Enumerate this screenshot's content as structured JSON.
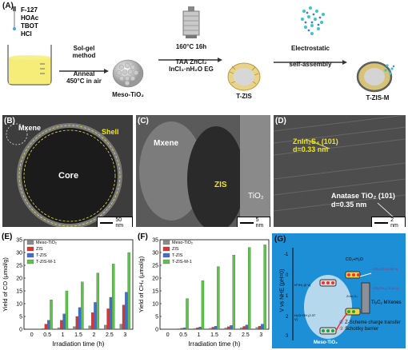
{
  "panelA": {
    "label": "(A)",
    "reagents": [
      "F-127",
      "HOAc",
      "TBOT",
      "HCl"
    ],
    "step1_line1": "Sol-gel",
    "step1_line2": "method",
    "step1_line3": "Anneal",
    "step1_line4": "450°C in air",
    "product1": "Meso-TiO₂",
    "step2_line1": "160°C 16h",
    "step2_line2": "TAA ZnCl₂",
    "step2_line3": "InCl₃·nH₂O EG",
    "product2": "T-ZIS",
    "step3_line1": "Electrostatic",
    "step3_line2": "self-assembly",
    "product3": "T-ZIS-M"
  },
  "panelB": {
    "label": "(B)",
    "mxene": "Mxene",
    "shell": "Shell",
    "core": "Core",
    "scale": "50 nm"
  },
  "panelC": {
    "label": "(C)",
    "mxene": "Mxene",
    "zis": "ZIS",
    "tio2": "TiO₂",
    "scale": "5 nm"
  },
  "panelD": {
    "label": "(D)",
    "znins": "ZnIn₂S₄ (101)",
    "znins_d": "d=0.33 nm",
    "anatase": "Anatase TiO₂ (101)",
    "anatase_d": "d=0.35 nm",
    "scale": "2 nm"
  },
  "panelG": {
    "label": "(G)",
    "yaxis": "V vs NHE (pH=0)",
    "ticks": [
      "-1",
      "0",
      "1",
      "2",
      "3"
    ],
    "meso": "Meso-TiO₂",
    "mxene": "Ti₃C₂ MXenes",
    "zis": "ZnIn₂S₄",
    "h_label": "H⁺/H₂ (0 V)",
    "oh_label": "H₂O/·OH (2.37 V)",
    "co2_a": "CO₂/CH₄ (-0.24 V)",
    "co2_b": "CO₂/CO (-0.53 V)",
    "co2_in": "CO₂+H₂O",
    "legend1": "Z-Scheme charge transfer",
    "legend2": "Schottky barrier"
  },
  "colors": {
    "meso": "#8c8c8c",
    "zis": "#e0322e",
    "tzis": "#3a6fd6",
    "tzism": "#5cc24a",
    "panelG_bg": "#1d8fd6"
  },
  "chart_data": [
    {
      "panel": "(E)",
      "type": "bar",
      "ylabel": "Yield of CO (μmol/g)",
      "xlabel": "Irradiation time (h)",
      "categories": [
        "0",
        "0.5",
        "1",
        "1.5",
        "2",
        "2.5",
        "3"
      ],
      "ylim": [
        0,
        35
      ],
      "yticks": [
        "0",
        "5",
        "10",
        "15",
        "20",
        "25",
        "30",
        "35"
      ],
      "series": [
        {
          "name": "Meso-TiO₂",
          "values": [
            0,
            0.3,
            0.6,
            1.0,
            1.3,
            1.6,
            2.0
          ]
        },
        {
          "name": "ZIS",
          "values": [
            0,
            2.0,
            3.5,
            5.0,
            6.5,
            8.0,
            9.5
          ]
        },
        {
          "name": "T-ZIS",
          "values": [
            0,
            3.5,
            6.0,
            8.5,
            10.5,
            12.5,
            14.5
          ]
        },
        {
          "name": "T-ZIS-M-1",
          "values": [
            0,
            11.5,
            15.0,
            18.5,
            22.0,
            25.5,
            30.0
          ]
        }
      ]
    },
    {
      "panel": "(F)",
      "type": "bar",
      "ylabel": "Yield of CH₄ (μmol/g)",
      "xlabel": "Irradiation time (h)",
      "categories": [
        "0",
        "0.5",
        "1",
        "1.5",
        "2",
        "2.5",
        "3"
      ],
      "ylim": [
        0,
        35
      ],
      "yticks": [
        "0",
        "5",
        "10",
        "15",
        "20",
        "25",
        "30",
        "35"
      ],
      "series": [
        {
          "name": "Meso-TiO₂",
          "values": [
            0,
            0.2,
            0.3,
            0.4,
            0.5,
            0.6,
            0.7
          ]
        },
        {
          "name": "ZIS",
          "values": [
            0,
            0.4,
            0.6,
            0.8,
            1.0,
            1.1,
            1.2
          ]
        },
        {
          "name": "T-ZIS",
          "values": [
            0,
            0.6,
            0.9,
            1.2,
            1.5,
            1.7,
            2.0
          ]
        },
        {
          "name": "T-ZIS-M-1",
          "values": [
            0,
            12.0,
            19.0,
            24.5,
            29.0,
            32.0,
            33.0
          ]
        }
      ]
    }
  ]
}
